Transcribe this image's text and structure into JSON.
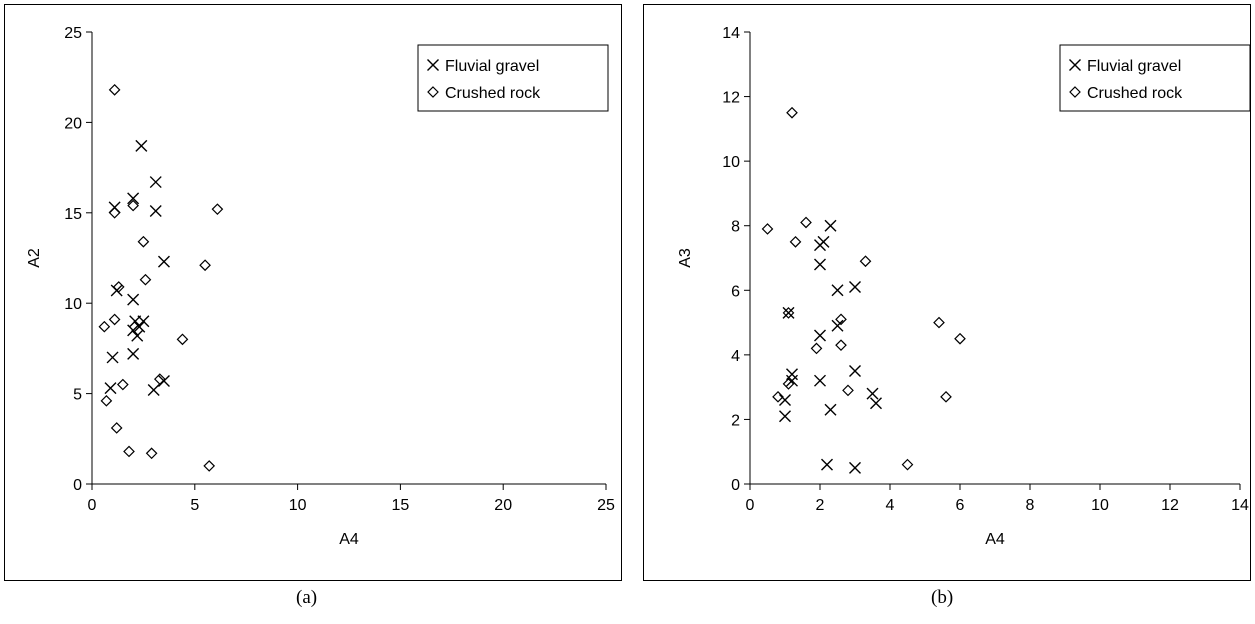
{
  "chart_data": [
    {
      "id": "a",
      "type": "scatter",
      "xlabel": "A4",
      "ylabel": "A2",
      "xlim": [
        0,
        25
      ],
      "ylim": [
        0,
        25
      ],
      "xticks": [
        0,
        5,
        10,
        15,
        20,
        25
      ],
      "yticks": [
        0,
        5,
        10,
        15,
        20,
        25
      ],
      "grid": false,
      "legend_position": "top-right",
      "series": [
        {
          "name": "Fluvial gravel",
          "marker": "x",
          "points": [
            [
              2.4,
              18.7
            ],
            [
              3.1,
              16.7
            ],
            [
              2.0,
              15.8
            ],
            [
              1.1,
              15.3
            ],
            [
              3.1,
              15.1
            ],
            [
              3.5,
              12.3
            ],
            [
              1.2,
              10.7
            ],
            [
              2.0,
              10.2
            ],
            [
              2.1,
              9.0
            ],
            [
              2.5,
              9.0
            ],
            [
              2.3,
              8.7
            ],
            [
              2.0,
              8.5
            ],
            [
              2.2,
              8.2
            ],
            [
              2.0,
              7.2
            ],
            [
              1.0,
              7.0
            ],
            [
              3.5,
              5.7
            ],
            [
              0.9,
              5.3
            ],
            [
              3.0,
              5.2
            ]
          ]
        },
        {
          "name": "Crushed rock",
          "marker": "diamond",
          "points": [
            [
              1.1,
              21.8
            ],
            [
              2.0,
              15.4
            ],
            [
              6.1,
              15.2
            ],
            [
              1.1,
              15.0
            ],
            [
              2.5,
              13.4
            ],
            [
              5.5,
              12.1
            ],
            [
              2.6,
              11.3
            ],
            [
              1.3,
              10.9
            ],
            [
              4.4,
              8.0
            ],
            [
              1.1,
              9.1
            ],
            [
              0.6,
              8.7
            ],
            [
              3.3,
              5.8
            ],
            [
              1.5,
              5.5
            ],
            [
              0.7,
              4.6
            ],
            [
              1.2,
              3.1
            ],
            [
              1.8,
              1.8
            ],
            [
              2.9,
              1.7
            ],
            [
              5.7,
              1.0
            ]
          ]
        }
      ]
    },
    {
      "id": "b",
      "type": "scatter",
      "xlabel": "A4",
      "ylabel": "A3",
      "xlim": [
        0,
        14
      ],
      "ylim": [
        0,
        14
      ],
      "xticks": [
        0,
        2,
        4,
        6,
        8,
        10,
        12,
        14
      ],
      "yticks": [
        0,
        2,
        4,
        6,
        8,
        10,
        12,
        14
      ],
      "grid": false,
      "legend_position": "top-right",
      "series": [
        {
          "name": "Fluvial gravel",
          "marker": "x",
          "points": [
            [
              2.3,
              8.0
            ],
            [
              2.1,
              7.5
            ],
            [
              2.0,
              7.4
            ],
            [
              2.0,
              6.8
            ],
            [
              3.0,
              6.1
            ],
            [
              2.5,
              6.0
            ],
            [
              1.1,
              5.3
            ],
            [
              2.5,
              4.9
            ],
            [
              2.0,
              4.6
            ],
            [
              3.0,
              3.5
            ],
            [
              1.2,
              3.4
            ],
            [
              2.0,
              3.2
            ],
            [
              1.2,
              3.2
            ],
            [
              3.5,
              2.8
            ],
            [
              1.0,
              2.6
            ],
            [
              3.6,
              2.5
            ],
            [
              2.3,
              2.3
            ],
            [
              1.0,
              2.1
            ],
            [
              2.2,
              0.6
            ],
            [
              3.0,
              0.5
            ]
          ]
        },
        {
          "name": "Crushed rock",
          "marker": "diamond",
          "points": [
            [
              1.2,
              11.5
            ],
            [
              0.5,
              7.9
            ],
            [
              1.6,
              8.1
            ],
            [
              1.3,
              7.5
            ],
            [
              3.3,
              6.9
            ],
            [
              1.1,
              5.3
            ],
            [
              2.6,
              5.1
            ],
            [
              5.4,
              5.0
            ],
            [
              6.0,
              4.5
            ],
            [
              2.6,
              4.3
            ],
            [
              1.9,
              4.2
            ],
            [
              1.1,
              3.1
            ],
            [
              2.8,
              2.9
            ],
            [
              0.8,
              2.7
            ],
            [
              5.6,
              2.7
            ],
            [
              4.5,
              0.6
            ]
          ]
        }
      ]
    }
  ],
  "captions": {
    "a": "(a)",
    "b": "(b)"
  }
}
